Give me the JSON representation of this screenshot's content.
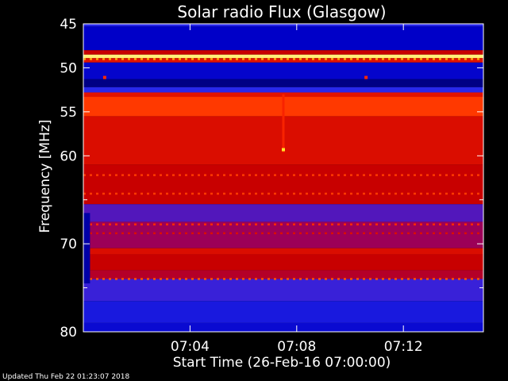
{
  "chart_data": {
    "type": "heatmap",
    "title": "Solar radio Flux (Glasgow)",
    "xlabel": "Start Time (26-Feb-16 07:00:00)",
    "ylabel": "Frequency [MHz]",
    "x_range_minutes": [
      0,
      15
    ],
    "y_range_mhz": [
      45,
      80
    ],
    "y_inverted": true,
    "grid": false,
    "x_ticks": [
      {
        "value_min": 4,
        "label": "07:04"
      },
      {
        "value_min": 8,
        "label": "07:08"
      },
      {
        "value_min": 12,
        "label": "07:12"
      }
    ],
    "y_ticks": [
      {
        "value": 45,
        "label": "45"
      },
      {
        "value": 50,
        "label": "50"
      },
      {
        "value": 55,
        "label": "55"
      },
      {
        "value": 60,
        "label": "60"
      },
      {
        "value": 70,
        "label": "70"
      },
      {
        "value": 80,
        "label": "80"
      }
    ],
    "y_minor_ticks": [
      65,
      75
    ],
    "bands": [
      {
        "from": 45.0,
        "to": 45.3,
        "level": 0.28
      },
      {
        "from": 45.3,
        "to": 48.0,
        "level": 0.12
      },
      {
        "from": 48.0,
        "to": 48.5,
        "level": 0.55
      },
      {
        "from": 48.5,
        "to": 48.9,
        "level": 0.95
      },
      {
        "from": 48.9,
        "to": 49.4,
        "level": 0.62
      },
      {
        "from": 49.4,
        "to": 51.3,
        "level": 0.14
      },
      {
        "from": 51.3,
        "to": 52.2,
        "level": 0.08
      },
      {
        "from": 52.2,
        "to": 52.8,
        "level": 0.28
      },
      {
        "from": 52.8,
        "to": 53.3,
        "level": 0.62
      },
      {
        "from": 53.3,
        "to": 55.5,
        "level": 0.72
      },
      {
        "from": 55.5,
        "to": 61.0,
        "level": 0.6
      },
      {
        "from": 61.0,
        "to": 65.5,
        "level": 0.55
      },
      {
        "from": 65.5,
        "to": 67.5,
        "level": 0.33
      },
      {
        "from": 67.5,
        "to": 70.5,
        "level": 0.44
      },
      {
        "from": 70.5,
        "to": 71.2,
        "level": 0.6
      },
      {
        "from": 71.2,
        "to": 73.0,
        "level": 0.55
      },
      {
        "from": 73.0,
        "to": 74.0,
        "level": 0.5
      },
      {
        "from": 74.0,
        "to": 76.5,
        "level": 0.3
      },
      {
        "from": 76.5,
        "to": 79.0,
        "level": 0.22
      },
      {
        "from": 79.0,
        "to": 80.0,
        "level": 0.16
      }
    ],
    "dotted_rows": [
      {
        "mhz": 49.0,
        "level": 0.85
      },
      {
        "mhz": 62.2,
        "level": 0.72
      },
      {
        "mhz": 64.3,
        "level": 0.72
      },
      {
        "mhz": 67.8,
        "level": 0.7
      },
      {
        "mhz": 68.8,
        "level": 0.6
      },
      {
        "mhz": 74.0,
        "level": 0.75
      }
    ],
    "features": [
      {
        "name": "burst-streak",
        "minute": 7.5,
        "from": 53.0,
        "to": 59.6,
        "level": 0.68
      },
      {
        "name": "burst-dot",
        "minute": 7.5,
        "mhz": 59.3,
        "level": 0.92
      },
      {
        "name": "spot",
        "minute": 0.8,
        "mhz": 51.1,
        "level": 0.7
      },
      {
        "name": "spot",
        "minute": 10.6,
        "mhz": 51.1,
        "level": 0.7
      }
    ],
    "gap": {
      "from_min": 0.0,
      "to_min": 0.25,
      "from": 66.5,
      "to": 74.5
    }
  },
  "footer": {
    "updated": "Updated Thu Feb 22 01:23:07 2018"
  }
}
